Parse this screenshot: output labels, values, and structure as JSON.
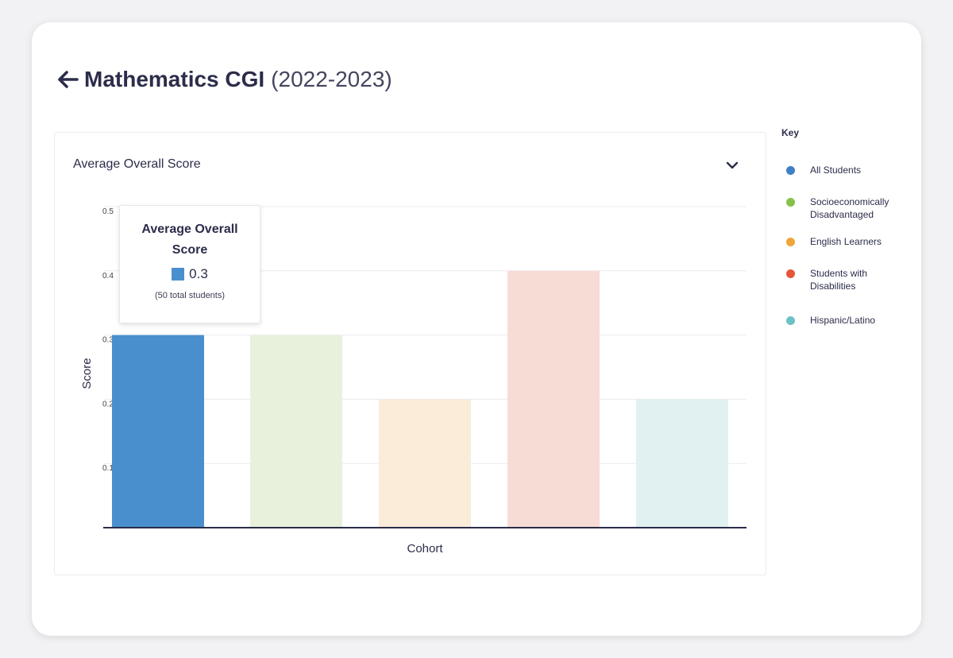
{
  "header": {
    "title": "Mathematics CGI",
    "year": "(2022-2023)"
  },
  "panel": {
    "title": "Average Overall Score"
  },
  "tooltip": {
    "title": "Average Overall Score",
    "value": "0.3",
    "note": "(50 total students)",
    "color": "#4a8fcd"
  },
  "key": {
    "title": "Key",
    "items": [
      {
        "label": "All Students",
        "color": "#3f7fc5"
      },
      {
        "label": "Socioeconomically Disadvantaged",
        "color": "#86c14a"
      },
      {
        "label": "English Learners",
        "color": "#f0a53a"
      },
      {
        "label": "Students with Disabilities",
        "color": "#e4553a"
      },
      {
        "label": "Hispanic/Latino",
        "color": "#6cc2c4"
      }
    ]
  },
  "chart_data": {
    "type": "bar",
    "categories": [
      "All Students",
      "Socioeconomically Disadvantaged",
      "English Learners",
      "Students with Disabilities",
      "Hispanic/Latino"
    ],
    "values": [
      0.3,
      0.3,
      0.2,
      0.4,
      0.2
    ],
    "colors": [
      "#4a8fcd",
      "#e7f1dc",
      "#faecd8",
      "#f6dcd5",
      "#e1f0f1"
    ],
    "xlabel": "Cohort",
    "ylabel": "Score",
    "ylim": [
      0,
      0.5
    ],
    "yticks": [
      0.1,
      0.2,
      0.3,
      0.4,
      0.5
    ],
    "ytick_labels": [
      "0.1",
      "0.2",
      "0.3",
      "0.4",
      "0.5"
    ],
    "grid": true,
    "legend": "right"
  }
}
